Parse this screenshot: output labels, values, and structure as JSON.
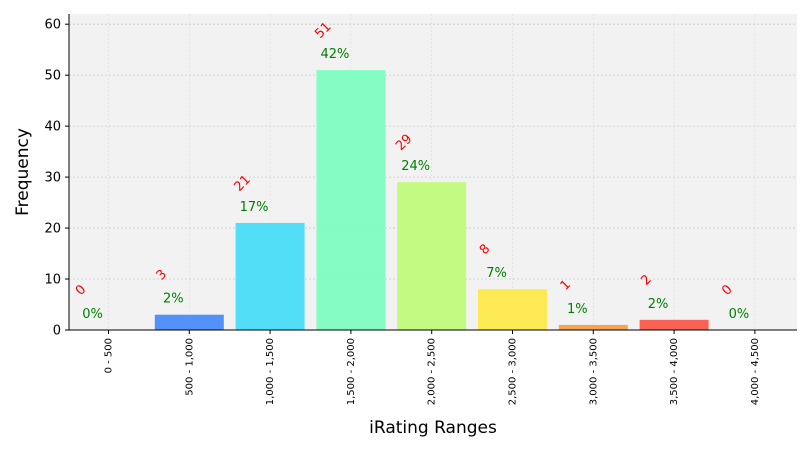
{
  "chart_data": {
    "type": "bar",
    "categories": [
      "0 - 500",
      "500 - 1,000",
      "1,000 - 1,500",
      "1,500 - 2,000",
      "2,000 - 2,500",
      "2,500 - 3,000",
      "3,000 - 3,500",
      "3,500 - 4,000",
      "4,000 - 4,500"
    ],
    "values": [
      0,
      3,
      21,
      51,
      29,
      8,
      1,
      2,
      0
    ],
    "count_labels": [
      "0",
      "3",
      "21",
      "51",
      "29",
      "8",
      "1",
      "2",
      "0"
    ],
    "percent_labels": [
      "0%",
      "2%",
      "17%",
      "42%",
      "24%",
      "7%",
      "1%",
      "2%",
      "0%"
    ],
    "colors": [
      "#4a4ae8",
      "#4a8cf8",
      "#4adcf8",
      "#80fcc2",
      "#c0fa7a",
      "#fce84a",
      "#f8a04a",
      "#fa5a4a",
      "#d03a2a"
    ],
    "xlabel": "iRating Ranges",
    "ylabel": "Frequency",
    "ylim": [
      0,
      62
    ],
    "yticks": [
      "0",
      "10",
      "20",
      "30",
      "40",
      "50",
      "60"
    ],
    "grid": true,
    "count_label_color": "#ff0000",
    "percent_label_color": "#008000",
    "plot_background": "#f2f2f2"
  }
}
